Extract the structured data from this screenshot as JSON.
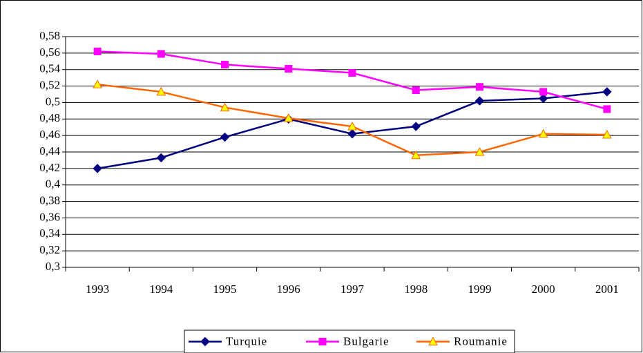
{
  "chart_data": {
    "type": "line",
    "categories": [
      "1993",
      "1994",
      "1995",
      "1996",
      "1997",
      "1998",
      "1999",
      "2000",
      "2001"
    ],
    "series": [
      {
        "name": "Turquie",
        "color": "#000080",
        "marker": "diamond",
        "marker_color": "#000080",
        "values": [
          0.42,
          0.433,
          0.458,
          0.48,
          0.462,
          0.471,
          0.502,
          0.505,
          0.513
        ]
      },
      {
        "name": "Bulgarie",
        "color": "#ff00ff",
        "marker": "square",
        "marker_color": "#ff00ff",
        "values": [
          0.562,
          0.559,
          0.546,
          0.541,
          0.536,
          0.515,
          0.519,
          0.513,
          0.492
        ]
      },
      {
        "name": "Roumanie",
        "color": "#ff6600",
        "marker": "triangle",
        "marker_color": "#ffff00",
        "values": [
          0.522,
          0.513,
          0.494,
          0.481,
          0.471,
          0.436,
          0.44,
          0.462,
          0.461
        ]
      }
    ],
    "ylim": [
      0.3,
      0.58
    ],
    "yticks": [
      {
        "value": 0.3,
        "label": "0,3"
      },
      {
        "value": 0.32,
        "label": "0,32"
      },
      {
        "value": 0.34,
        "label": "0,34"
      },
      {
        "value": 0.36,
        "label": "0,36"
      },
      {
        "value": 0.38,
        "label": "0,38"
      },
      {
        "value": 0.4,
        "label": "0,4"
      },
      {
        "value": 0.42,
        "label": "0,42"
      },
      {
        "value": 0.44,
        "label": "0,44"
      },
      {
        "value": 0.46,
        "label": "0,46"
      },
      {
        "value": 0.48,
        "label": "0,48"
      },
      {
        "value": 0.5,
        "label": "0,5"
      },
      {
        "value": 0.52,
        "label": "0,52"
      },
      {
        "value": 0.54,
        "label": "0,54"
      },
      {
        "value": 0.56,
        "label": "0,56"
      },
      {
        "value": 0.58,
        "label": "0,58"
      }
    ],
    "grid": true,
    "legend": "bottom"
  }
}
